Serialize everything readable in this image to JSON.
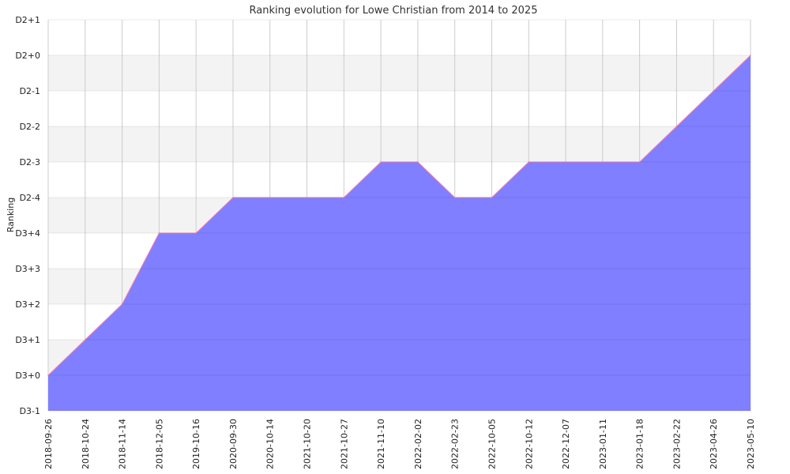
{
  "chart_data": {
    "type": "area",
    "title": "Ranking evolution for Lowe Christian from 2014 to 2025",
    "xlabel": "",
    "ylabel": "Ranking",
    "y_ticks": [
      "D3-1",
      "D3+0",
      "D3+1",
      "D3+2",
      "D3+3",
      "D3+4",
      "D2-4",
      "D2-3",
      "D2-2",
      "D2-1",
      "D2+0",
      "D2+1"
    ],
    "ylim": [
      "D3-1",
      "D2+1"
    ],
    "x": [
      "2018-09-26",
      "2018-10-24",
      "2018-11-14",
      "2018-12-05",
      "2019-10-16",
      "2020-09-30",
      "2020-10-14",
      "2021-10-20",
      "2021-10-27",
      "2021-11-10",
      "2022-02-02",
      "2022-02-23",
      "2022-10-05",
      "2022-10-12",
      "2022-12-07",
      "2023-01-11",
      "2023-01-18",
      "2023-02-22",
      "2023-04-26",
      "2023-05-10"
    ],
    "series": [
      {
        "values": [
          "D3+0",
          "D3+1",
          "D3+2",
          "D3+4",
          "D3+4",
          "D2-4",
          "D2-4",
          "D2-4",
          "D2-4",
          "D2-3",
          "D2-3",
          "D2-4",
          "D2-4",
          "D2-3",
          "D2-3",
          "D2-3",
          "D2-3",
          "D2-2",
          "D2-1",
          "D2+0"
        ],
        "fill_color": "#7f7fff",
        "line_color": "#ff7fb0"
      }
    ],
    "grid": true,
    "band_color": "#f3f3f3",
    "grid_color": "#cccccc"
  }
}
